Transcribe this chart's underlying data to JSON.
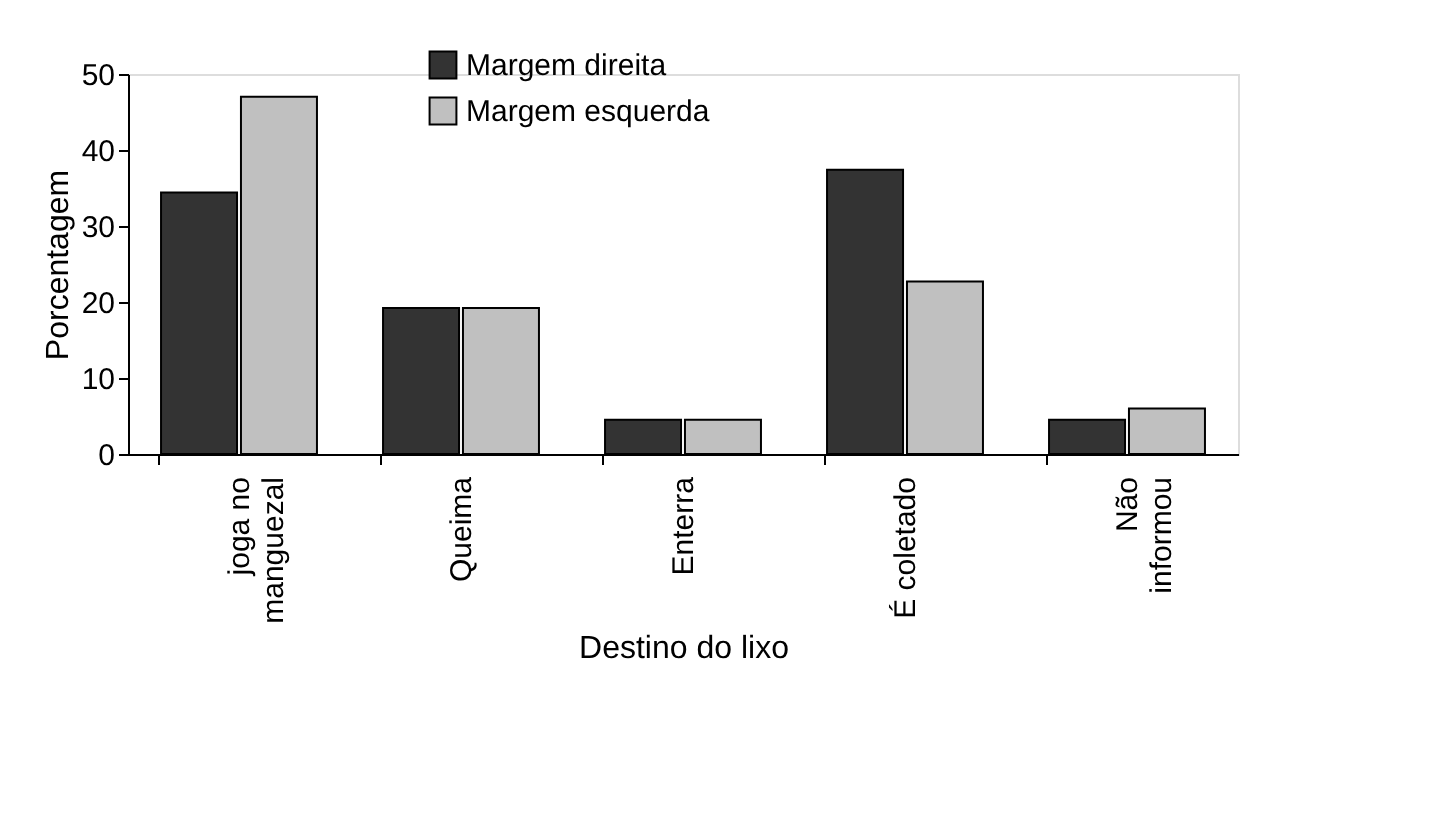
{
  "chart_data": {
    "type": "bar",
    "xlabel": "Destino do lixo",
    "ylabel": "Porcentagem",
    "categories": [
      "joga no\nmanguezal",
      "Queima",
      "Enterra",
      "É coletado",
      "Não\ninformou"
    ],
    "series": [
      {
        "name": "Margem direita",
        "color": "#333333",
        "values": [
          34.4,
          19.2,
          4.5,
          37.4,
          4.5
        ]
      },
      {
        "name": "Margem esquerda",
        "color": "#c0c0c0",
        "values": [
          47.0,
          19.2,
          4.5,
          22.7,
          6.0
        ]
      }
    ],
    "ylim": [
      0,
      50
    ],
    "yticks": [
      0,
      10,
      20,
      30,
      40,
      50
    ],
    "grid": false,
    "legend": "top"
  }
}
